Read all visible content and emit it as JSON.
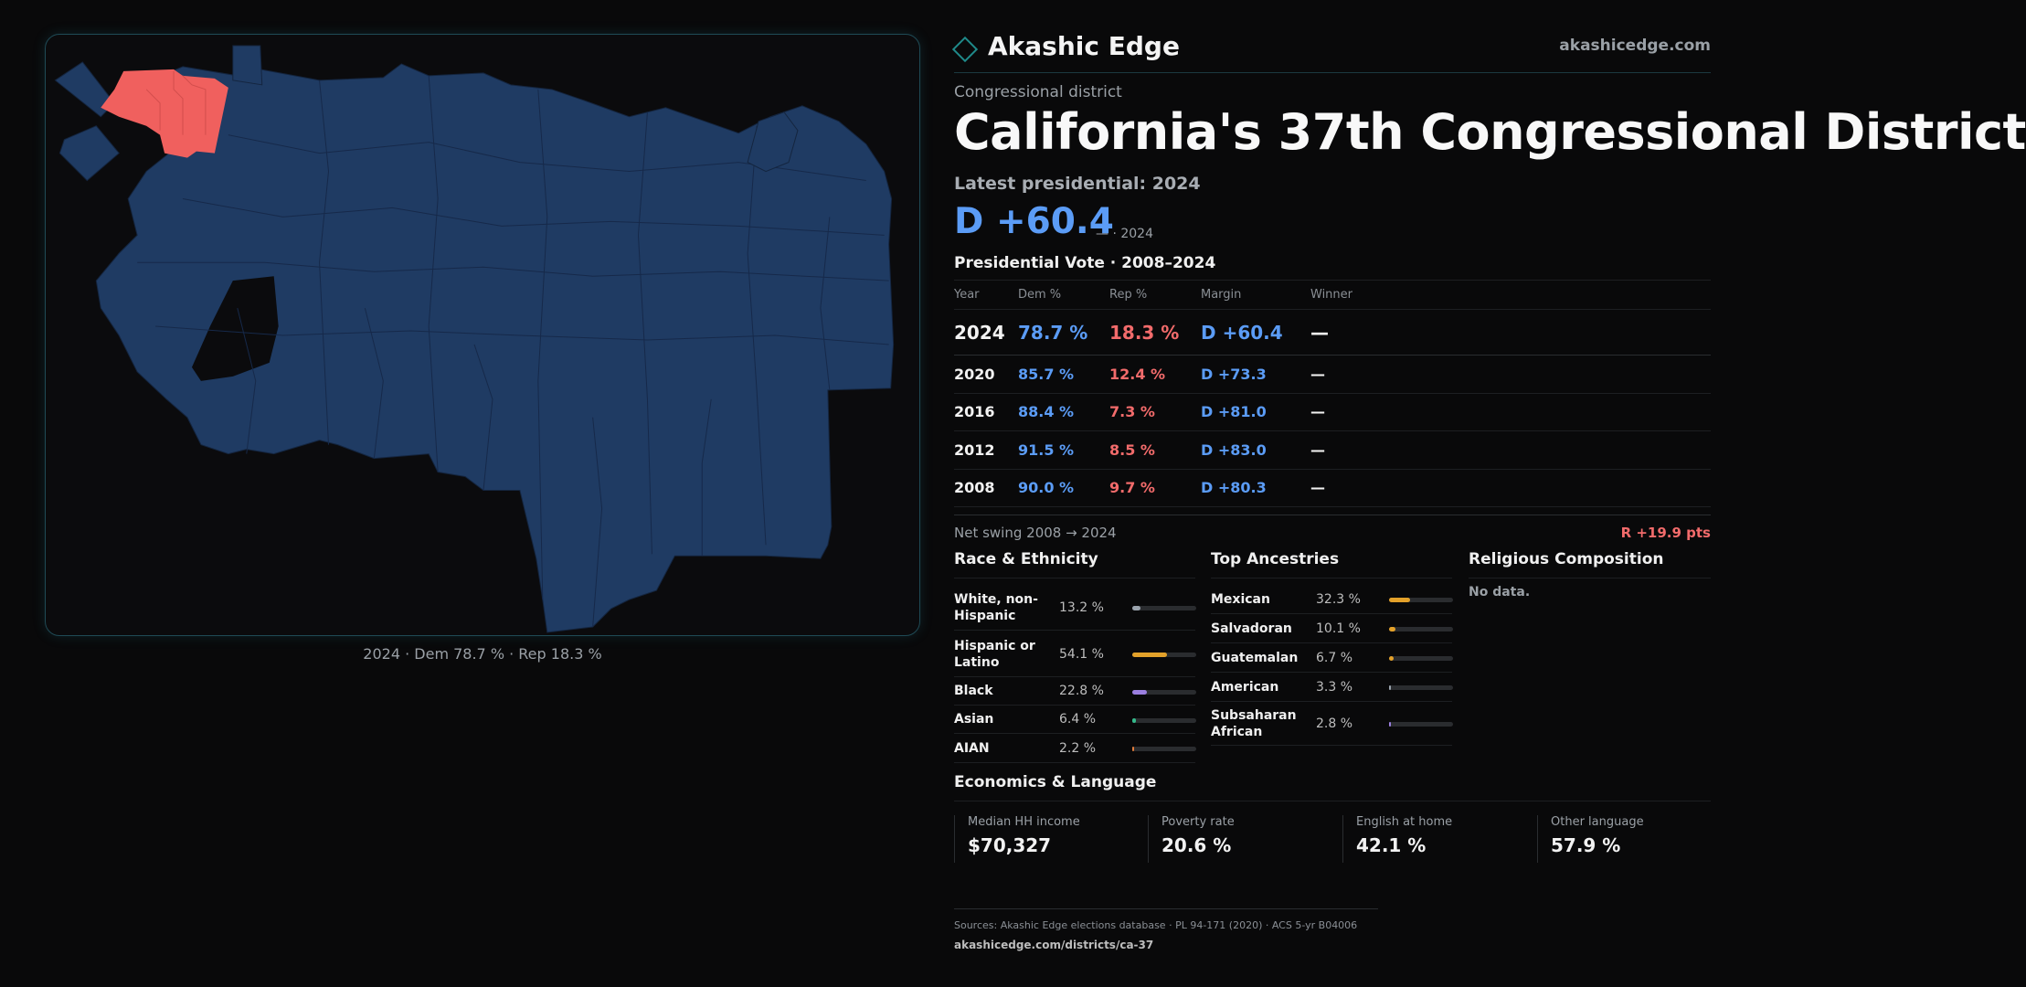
{
  "brand": {
    "name": "Akashic Edge",
    "url": "akashicedge.com"
  },
  "district": {
    "kicker": "Congressional district",
    "title": "California's 37th Congressional District",
    "latest_label": "Latest presidential: 2024",
    "latest_margin": "D +60.4",
    "latest_sub": "— · 2024"
  },
  "votes": {
    "title": "Presidential Vote · 2008–2024",
    "headers": [
      "Year",
      "Dem %",
      "Rep %",
      "Margin",
      "Winner"
    ],
    "rows": [
      {
        "year": "2024",
        "dem": "78.7 %",
        "rep": "18.3 %",
        "margin": "D +60.4",
        "winner": "—"
      },
      {
        "year": "2020",
        "dem": "85.7 %",
        "rep": "12.4 %",
        "margin": "D +73.3",
        "winner": "—"
      },
      {
        "year": "2016",
        "dem": "88.4 %",
        "rep": "7.3 %",
        "margin": "D +81.0",
        "winner": "—"
      },
      {
        "year": "2012",
        "dem": "91.5 %",
        "rep": "8.5 %",
        "margin": "D +83.0",
        "winner": "—"
      },
      {
        "year": "2008",
        "dem": "90.0 %",
        "rep": "9.7 %",
        "margin": "D +80.3",
        "winner": "—"
      }
    ],
    "swing_label": "Net swing 2008 → 2024",
    "swing_value": "R +19.9 pts"
  },
  "race": {
    "title": "Race & Ethnicity",
    "items": [
      {
        "label": "White, non-Hispanic",
        "value": "13.2 %",
        "fraction": 0.132,
        "color": "#9aa3ad"
      },
      {
        "label": "Hispanic or Latino",
        "value": "54.1 %",
        "fraction": 0.541,
        "color": "#e3a12a"
      },
      {
        "label": "Black",
        "value": "22.8 %",
        "fraction": 0.228,
        "color": "#9b7fe0"
      },
      {
        "label": "Asian",
        "value": "6.4 %",
        "fraction": 0.064,
        "color": "#34b98a"
      },
      {
        "label": "AIAN",
        "value": "2.2 %",
        "fraction": 0.022,
        "color": "#e07b3a"
      }
    ]
  },
  "ancestry": {
    "title": "Top Ancestries",
    "items": [
      {
        "label": "Mexican",
        "value": "32.3 %",
        "fraction": 0.323,
        "color": "#e3a12a"
      },
      {
        "label": "Salvadoran",
        "value": "10.1 %",
        "fraction": 0.101,
        "color": "#e3a12a"
      },
      {
        "label": "Guatemalan",
        "value": "6.7 %",
        "fraction": 0.067,
        "color": "#e3a12a"
      },
      {
        "label": "American",
        "value": "3.3 %",
        "fraction": 0.033,
        "color": "#9aa3ad"
      },
      {
        "label": "Subsaharan African",
        "value": "2.8 %",
        "fraction": 0.028,
        "color": "#9b7fe0"
      }
    ]
  },
  "religion": {
    "title": "Religious Composition",
    "empty": "No data."
  },
  "economics": {
    "title": "Economics & Language",
    "cells": [
      {
        "label": "Median HH income",
        "value": "$70,327"
      },
      {
        "label": "Poverty rate",
        "value": "20.6 %"
      },
      {
        "label": "English at home",
        "value": "42.1 %"
      },
      {
        "label": "Other language",
        "value": "57.9 %"
      }
    ]
  },
  "sources": {
    "line1": "Sources: Akashic Edge elections database · PL 94-171 (2020) · ACS 5-yr B04006",
    "line2": "akashicedge.com/districts/ca-37"
  },
  "map": {
    "caption": "2024 · Dem 78.7 % · Rep 18.3 %",
    "colors": {
      "dem": "#1f3b63",
      "rep": "#f0605e",
      "stroke": "#14253f"
    }
  }
}
